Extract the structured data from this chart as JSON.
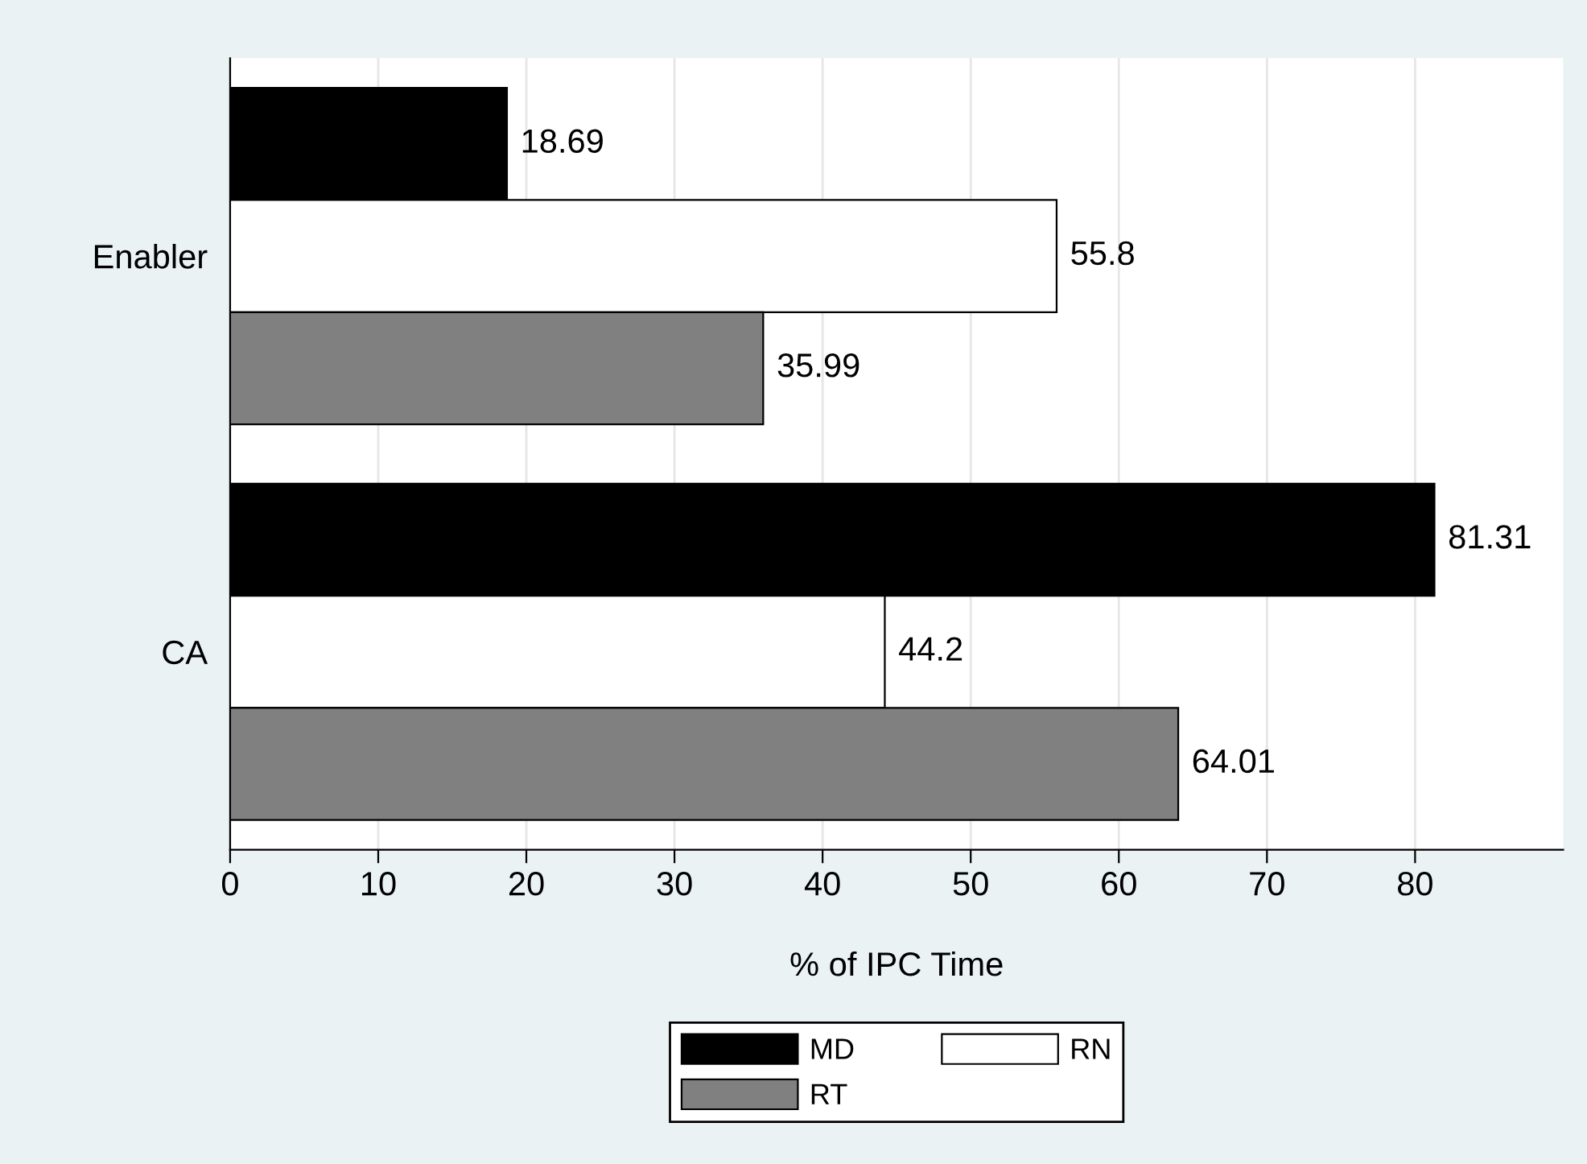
{
  "chart_data": {
    "type": "bar",
    "orientation": "horizontal",
    "xlabel": "% of IPC Time",
    "categories": [
      "Enabler",
      "CA"
    ],
    "series": [
      {
        "name": "MD",
        "color": "#000000",
        "values": [
          18.69,
          81.31
        ]
      },
      {
        "name": "RN",
        "color": "#ffffff",
        "values": [
          55.8,
          44.2
        ]
      },
      {
        "name": "RT",
        "color": "#808080",
        "values": [
          35.99,
          64.01
        ]
      }
    ],
    "xlim": [
      0,
      90
    ],
    "xticks": [
      0,
      10,
      20,
      30,
      40,
      50,
      60,
      70,
      80
    ],
    "grid": "x",
    "legend": "bottom",
    "data_labels": true
  }
}
